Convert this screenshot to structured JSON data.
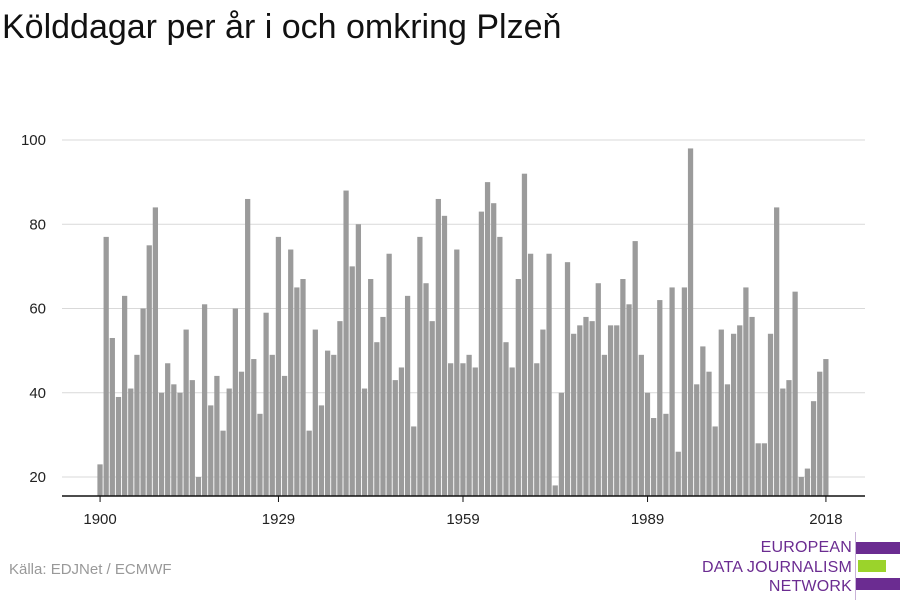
{
  "title": "Kölddagar per år i och omkring Plzeň",
  "source": "Källa: EDJNet / ECMWF",
  "logo": {
    "line1": "EUROPEAN",
    "line2": "DATA JOURNALISM",
    "line3": "NETWORK",
    "colors": [
      "#6b2c91",
      "#9bd32b",
      "#6b2c91"
    ]
  },
  "colors": {
    "bar": "#9b9b9b",
    "grid": "#d9d9d9",
    "axis": "#111111"
  },
  "chart_data": {
    "type": "bar",
    "title": "Kölddagar per år i och omkring Plzeň",
    "xlabel": "",
    "ylabel": "",
    "x_ticks": [
      1900,
      1929,
      1959,
      1989,
      2018
    ],
    "y_ticks": [
      20,
      40,
      60,
      80,
      100
    ],
    "ylim": [
      15.5,
      100
    ],
    "grid": true,
    "categories": [
      1900,
      1901,
      1902,
      1903,
      1904,
      1905,
      1906,
      1907,
      1908,
      1909,
      1910,
      1911,
      1912,
      1913,
      1914,
      1915,
      1916,
      1917,
      1918,
      1919,
      1920,
      1921,
      1922,
      1923,
      1924,
      1925,
      1926,
      1927,
      1928,
      1929,
      1930,
      1931,
      1932,
      1933,
      1934,
      1935,
      1936,
      1937,
      1938,
      1939,
      1940,
      1941,
      1942,
      1943,
      1944,
      1945,
      1946,
      1947,
      1948,
      1949,
      1950,
      1951,
      1952,
      1953,
      1954,
      1955,
      1956,
      1957,
      1958,
      1959,
      1960,
      1961,
      1962,
      1963,
      1964,
      1965,
      1966,
      1967,
      1968,
      1969,
      1970,
      1971,
      1972,
      1973,
      1974,
      1975,
      1976,
      1977,
      1978,
      1979,
      1980,
      1981,
      1982,
      1983,
      1984,
      1985,
      1986,
      1987,
      1988,
      1989,
      1990,
      1991,
      1992,
      1993,
      1994,
      1995,
      1996,
      1997,
      1998,
      1999,
      2000,
      2001,
      2002,
      2003,
      2004,
      2005,
      2006,
      2007,
      2008,
      2009,
      2010,
      2011,
      2012,
      2013,
      2014,
      2015,
      2016,
      2017,
      2018
    ],
    "values": [
      23,
      77,
      53,
      39,
      63,
      41,
      49,
      60,
      75,
      84,
      40,
      47,
      42,
      40,
      55,
      43,
      20,
      61,
      37,
      44,
      31,
      41,
      60,
      45,
      86,
      48,
      35,
      59,
      49,
      77,
      44,
      74,
      65,
      67,
      31,
      55,
      37,
      50,
      49,
      57,
      88,
      70,
      80,
      41,
      67,
      52,
      58,
      73,
      43,
      46,
      63,
      32,
      77,
      66,
      57,
      86,
      82,
      47,
      74,
      47,
      49,
      46,
      83,
      90,
      85,
      77,
      52,
      46,
      67,
      92,
      73,
      47,
      55,
      73,
      18,
      40,
      71,
      54,
      56,
      58,
      57,
      66,
      49,
      56,
      56,
      67,
      61,
      76,
      49,
      40,
      34,
      62,
      35,
      65,
      26,
      65,
      98,
      42,
      51,
      45,
      32,
      55,
      42,
      54,
      56,
      65,
      58,
      28,
      28,
      54,
      84,
      41,
      43,
      64,
      20,
      22,
      38,
      45,
      48
    ]
  }
}
